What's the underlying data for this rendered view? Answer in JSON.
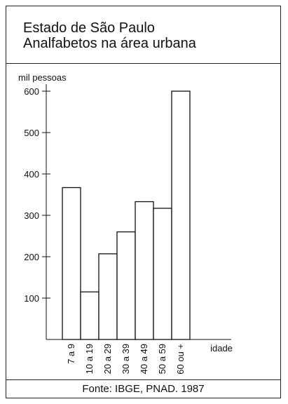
{
  "header": {
    "title_line1": "Estado de São Paulo",
    "title_line2": "Analfabetos na área urbana"
  },
  "footer": {
    "source": "Fonte: IBGE, PNAD. 1987"
  },
  "chart_data": {
    "type": "bar",
    "title": "Estado de São Paulo / Analfabetos na área urbana",
    "ylabel": "mil pessoas",
    "xlabel": "idade",
    "ylim": [
      0,
      600
    ],
    "yticks": [
      100,
      200,
      300,
      400,
      500,
      600
    ],
    "grid": false,
    "categories": [
      "7 a 9",
      "10 a 19",
      "20 a 29",
      "30 a 39",
      "40 a 49",
      "50 a 59",
      "60 ou +"
    ],
    "values": [
      367,
      115,
      207,
      260,
      333,
      317,
      600
    ],
    "bar_fill": "#ffffff",
    "bar_stroke": "#111111"
  }
}
